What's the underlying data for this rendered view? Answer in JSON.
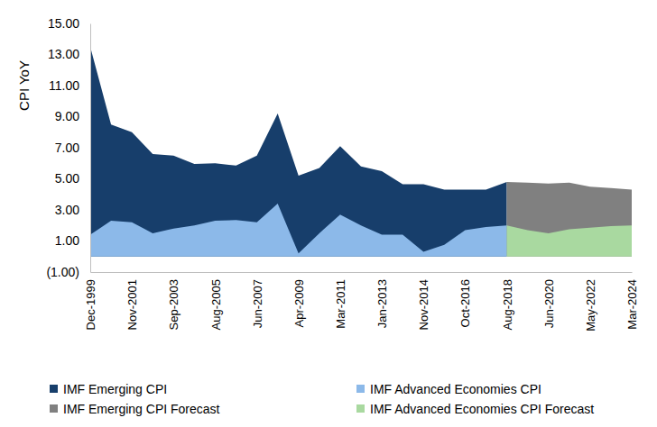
{
  "chart_data": {
    "type": "area",
    "y_label": "CPI YoY",
    "categories": [
      "Dec-1999",
      null,
      "Nov-2001",
      null,
      "Sep-2003",
      null,
      "Aug-2005",
      null,
      "Jun-2007",
      null,
      "Apr-2009",
      null,
      "Mar-2011",
      null,
      "Jan-2013",
      null,
      "Nov-2014",
      null,
      "Oct-2016",
      null,
      "Aug-2018",
      null,
      "Jun-2020",
      null,
      "May-2022",
      null,
      "Mar-2024"
    ],
    "series": [
      {
        "name": "IMF Emerging CPI",
        "color": "#173e6b",
        "values": [
          13.5,
          8.5,
          8.0,
          6.6,
          6.5,
          5.95,
          6.0,
          5.85,
          6.5,
          9.2,
          5.2,
          5.7,
          7.1,
          5.8,
          5.5,
          4.65,
          4.65,
          4.3,
          4.3,
          4.3,
          4.8,
          null,
          null,
          null,
          null,
          null,
          null
        ]
      },
      {
        "name": "IMF Advanced Economies CPI",
        "color": "#8cb9e9",
        "values": [
          1.4,
          2.3,
          2.2,
          1.5,
          1.8,
          2.0,
          2.3,
          2.35,
          2.2,
          3.4,
          0.2,
          1.5,
          2.7,
          2.0,
          1.4,
          1.4,
          0.3,
          0.75,
          1.7,
          1.9,
          2.0,
          null,
          null,
          null,
          null,
          null,
          null
        ]
      },
      {
        "name": "IMF Emerging CPI Forecast",
        "color": "#808080",
        "values": [
          null,
          null,
          null,
          null,
          null,
          null,
          null,
          null,
          null,
          null,
          null,
          null,
          null,
          null,
          null,
          null,
          null,
          null,
          null,
          null,
          4.8,
          4.75,
          4.7,
          4.75,
          4.5,
          4.4,
          4.3
        ]
      },
      {
        "name": "IMF Advanced Economies CPI Forecast",
        "color": "#a9d9a0",
        "values": [
          null,
          null,
          null,
          null,
          null,
          null,
          null,
          null,
          null,
          null,
          null,
          null,
          null,
          null,
          null,
          null,
          null,
          null,
          null,
          null,
          2.0,
          1.7,
          1.5,
          1.75,
          1.85,
          1.95,
          2.0
        ]
      }
    ],
    "ylim": [
      -1,
      15
    ],
    "yticks": [
      {
        "value": -1,
        "label": "(1.00)"
      },
      {
        "value": 1,
        "label": "1.00"
      },
      {
        "value": 3,
        "label": "3.00"
      },
      {
        "value": 5,
        "label": "5.00"
      },
      {
        "value": 7,
        "label": "7.00"
      },
      {
        "value": 9,
        "label": "9.00"
      },
      {
        "value": 11,
        "label": "11.00"
      },
      {
        "value": 13,
        "label": "13.00"
      },
      {
        "value": 15,
        "label": "15.00"
      }
    ],
    "grid": false,
    "legend": "bottom"
  }
}
